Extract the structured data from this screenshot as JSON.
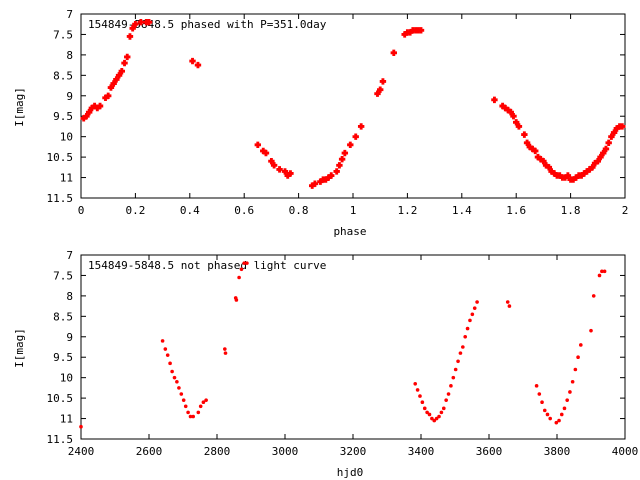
{
  "chart_data": [
    {
      "type": "scatter",
      "title": "154849-5848.5 phased with P=351.0day",
      "xlabel": "phase",
      "ylabel": "I[mag]",
      "xlim": [
        0,
        2
      ],
      "ylim": [
        11.5,
        7
      ],
      "y_inverted": true,
      "xticks": [
        "0",
        "0.2",
        "0.4",
        "0.6",
        "0.8",
        "1",
        "1.2",
        "1.4",
        "1.6",
        "1.8",
        "2"
      ],
      "yticks": [
        "7",
        "7.5",
        "8",
        "8.5",
        "9",
        "9.5",
        "10",
        "10.5",
        "11",
        "11.5"
      ],
      "grid": false,
      "marker_color": "#ff0000",
      "series": [
        {
          "x": [
            0.01,
            0.02,
            0.03,
            0.04,
            0.05,
            0.06,
            0.07,
            0.09,
            0.1,
            0.11,
            0.12,
            0.13,
            0.14,
            0.15,
            0.16,
            0.17,
            0.18,
            0.19,
            0.2,
            0.22,
            0.24,
            0.25,
            0.41,
            0.43,
            0.65,
            0.67,
            0.68,
            0.7,
            0.71,
            0.73,
            0.75,
            0.76,
            0.77,
            0.85,
            0.86,
            0.88,
            0.89,
            0.9,
            0.91,
            0.92,
            0.94,
            0.95,
            0.96,
            0.97,
            0.99,
            1.01,
            1.03,
            1.09,
            1.1,
            1.11,
            1.15,
            1.19,
            1.2,
            1.21,
            1.22,
            1.23,
            1.24,
            1.25,
            1.52,
            1.55,
            1.56,
            1.57,
            1.58,
            1.59,
            1.6,
            1.61,
            1.63,
            1.64,
            1.65,
            1.66,
            1.67,
            1.68,
            1.69,
            1.7,
            1.71,
            1.72,
            1.73,
            1.74,
            1.75,
            1.76,
            1.77,
            1.78,
            1.79,
            1.8,
            1.81,
            1.82,
            1.83,
            1.84,
            1.85,
            1.86,
            1.87,
            1.88,
            1.89,
            1.9,
            1.91,
            1.92,
            1.93,
            1.94,
            1.95,
            1.96,
            1.97,
            1.98,
            1.99
          ],
          "y": [
            9.55,
            9.5,
            9.4,
            9.3,
            9.25,
            9.3,
            9.25,
            9.05,
            9.0,
            8.8,
            8.7,
            8.6,
            8.5,
            8.4,
            8.2,
            8.05,
            7.55,
            7.35,
            7.25,
            7.2,
            7.2,
            7.2,
            8.15,
            8.25,
            10.2,
            10.35,
            10.4,
            10.6,
            10.7,
            10.8,
            10.85,
            10.95,
            10.9,
            11.2,
            11.15,
            11.1,
            11.05,
            11.05,
            11.0,
            10.95,
            10.85,
            10.7,
            10.55,
            10.4,
            10.2,
            10.0,
            9.75,
            8.95,
            8.85,
            8.65,
            7.95,
            7.5,
            7.45,
            7.45,
            7.4,
            7.4,
            7.4,
            7.4,
            9.1,
            9.25,
            9.3,
            9.35,
            9.4,
            9.5,
            9.65,
            9.75,
            9.95,
            10.15,
            10.25,
            10.3,
            10.35,
            10.5,
            10.55,
            10.6,
            10.7,
            10.75,
            10.85,
            10.9,
            10.95,
            10.95,
            11.0,
            11.0,
            10.95,
            11.05,
            11.05,
            11.0,
            10.95,
            10.95,
            10.9,
            10.85,
            10.8,
            10.75,
            10.65,
            10.6,
            10.5,
            10.4,
            10.3,
            10.15,
            10.0,
            9.9,
            9.8,
            9.75,
            9.75
          ]
        }
      ]
    },
    {
      "type": "scatter",
      "title": "154849-5848.5 not phased light curve",
      "xlabel": "hjd0",
      "ylabel": "I[mag]",
      "xlim": [
        2400,
        4000
      ],
      "ylim": [
        11.5,
        7
      ],
      "y_inverted": true,
      "xticks": [
        "2400",
        "2600",
        "2800",
        "3000",
        "3200",
        "3400",
        "3600",
        "3800",
        "4000"
      ],
      "yticks": [
        "7",
        "7.5",
        "8",
        "8.5",
        "9",
        "9.5",
        "10",
        "10.5",
        "11",
        "11.5"
      ],
      "grid": false,
      "marker_color": "#ff0000",
      "series": [
        {
          "x": [
            2400,
            2640,
            2648,
            2655,
            2662,
            2668,
            2675,
            2682,
            2688,
            2695,
            2702,
            2708,
            2715,
            2722,
            2730,
            2745,
            2752,
            2760,
            2768,
            2823,
            2825,
            2855,
            2857,
            2865,
            2872,
            2880,
            2888,
            3383,
            3390,
            3397,
            3404,
            3411,
            3418,
            3425,
            3432,
            3439,
            3446,
            3453,
            3460,
            3467,
            3474,
            3481,
            3488,
            3495,
            3502,
            3509,
            3516,
            3523,
            3530,
            3537,
            3544,
            3551,
            3558,
            3565,
            3655,
            3660,
            3740,
            3748,
            3756,
            3764,
            3772,
            3780,
            3798,
            3806,
            3814,
            3822,
            3830,
            3838,
            3846,
            3854,
            3862,
            3870,
            3900,
            3908,
            3925,
            3932,
            3940
          ],
          "y": [
            11.2,
            9.1,
            9.3,
            9.45,
            9.65,
            9.85,
            10.0,
            10.1,
            10.25,
            10.4,
            10.55,
            10.7,
            10.85,
            10.95,
            10.95,
            10.85,
            10.7,
            10.6,
            10.55,
            9.3,
            9.4,
            8.05,
            8.1,
            7.55,
            7.35,
            7.2,
            7.2,
            10.15,
            10.3,
            10.45,
            10.6,
            10.75,
            10.85,
            10.9,
            11.0,
            11.05,
            11.0,
            10.95,
            10.85,
            10.75,
            10.55,
            10.4,
            10.2,
            10.0,
            9.8,
            9.6,
            9.4,
            9.25,
            9.0,
            8.8,
            8.6,
            8.45,
            8.3,
            8.15,
            8.15,
            8.25,
            10.2,
            10.4,
            10.6,
            10.8,
            10.9,
            11.0,
            11.1,
            11.05,
            10.9,
            10.75,
            10.55,
            10.35,
            10.1,
            9.8,
            9.5,
            9.2,
            8.85,
            8.0,
            7.5,
            7.4,
            7.4
          ]
        }
      ]
    }
  ]
}
